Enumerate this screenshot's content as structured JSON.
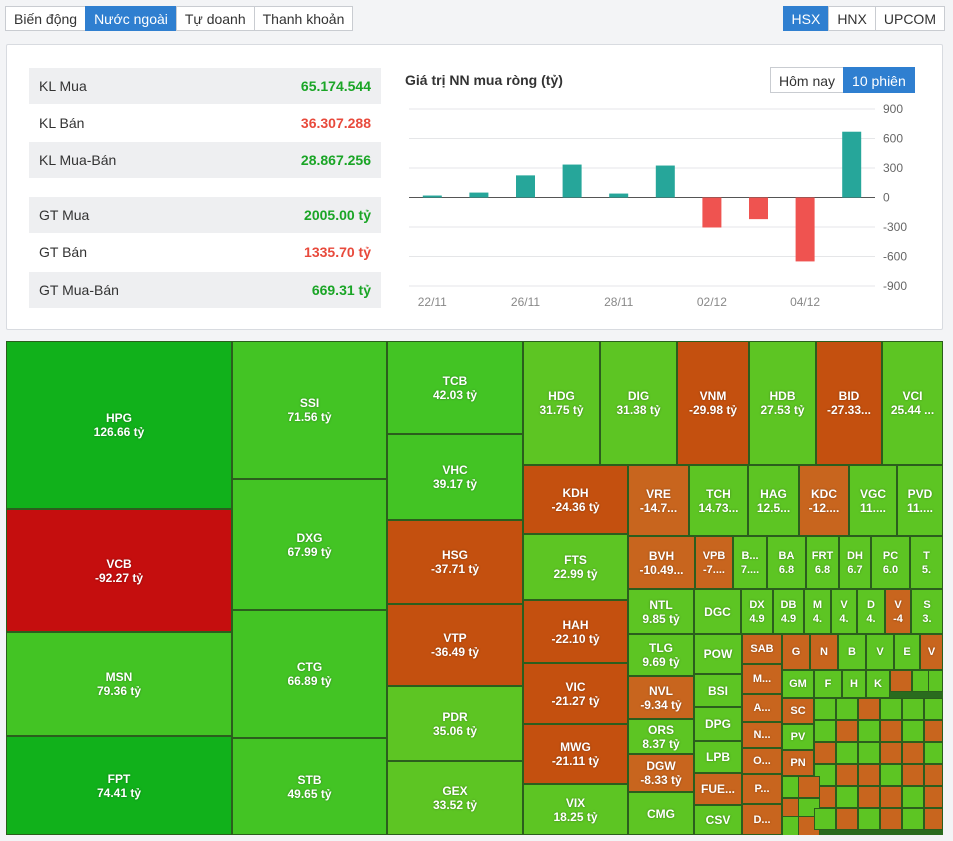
{
  "tabs": [
    {
      "label": "Biến động",
      "active": false
    },
    {
      "label": "Nước ngoài",
      "active": true
    },
    {
      "label": "Tự doanh",
      "active": false
    },
    {
      "label": "Thanh khoản",
      "active": false
    }
  ],
  "exchanges": [
    {
      "label": "HSX",
      "active": true
    },
    {
      "label": "HNX",
      "active": false
    },
    {
      "label": "UPCOM",
      "active": false
    }
  ],
  "stats": [
    {
      "label": "KL Mua",
      "value": "65.174.544",
      "tone": "up"
    },
    {
      "label": "KL Bán",
      "value": "36.307.288",
      "tone": "down"
    },
    {
      "label": "KL Mua-Bán",
      "value": "28.867.256",
      "tone": "up"
    },
    {
      "label": "GT Mua",
      "value": "2005.00 tỷ",
      "tone": "up"
    },
    {
      "label": "GT Bán",
      "value": "1335.70 tỷ",
      "tone": "down"
    },
    {
      "label": "GT Mua-Bán",
      "value": "669.31 tỷ",
      "tone": "up"
    }
  ],
  "chart_title": "Giá trị NN mua ròng (tỷ)",
  "range_buttons": [
    {
      "label": "Hôm nay",
      "active": false
    },
    {
      "label": "10 phiên",
      "active": true
    }
  ],
  "chart_data": {
    "type": "bar",
    "title": "Giá trị NN mua ròng (tỷ)",
    "x_ticks": [
      "22/11",
      "26/11",
      "28/11",
      "02/12",
      "04/12"
    ],
    "values": [
      20,
      50,
      225,
      335,
      40,
      325,
      -305,
      -220,
      -650,
      669
    ],
    "ylim": [
      -900,
      900
    ],
    "y_ticks": [
      900,
      600,
      300,
      0,
      -300,
      -600,
      -900
    ],
    "grid": true,
    "colors": {
      "positive": "#26a69a",
      "negative": "#ef5350"
    }
  },
  "heatmap_colors": {
    "strong_green": "#11b11b",
    "green": "#43c424",
    "light_green": "#5dc523",
    "orange": "#c8651e",
    "dark_orange": "#c4500f",
    "red": "#c50e0e",
    "border": "#2b5e1d"
  },
  "treemap": [
    {
      "symbol": "HPG",
      "value": "126.66 tỷ"
    },
    {
      "symbol": "VCB",
      "value": "-92.27 tỷ"
    },
    {
      "symbol": "MSN",
      "value": "79.36 tỷ"
    },
    {
      "symbol": "FPT",
      "value": "74.41 tỷ"
    },
    {
      "symbol": "SSI",
      "value": "71.56 tỷ"
    },
    {
      "symbol": "DXG",
      "value": "67.99 tỷ"
    },
    {
      "symbol": "CTG",
      "value": "66.89 tỷ"
    },
    {
      "symbol": "STB",
      "value": "49.65 tỷ"
    },
    {
      "symbol": "TCB",
      "value": "42.03 tỷ"
    },
    {
      "symbol": "VHC",
      "value": "39.17 tỷ"
    },
    {
      "symbol": "HSG",
      "value": "-37.71 tỷ"
    },
    {
      "symbol": "VTP",
      "value": "-36.49 tỷ"
    },
    {
      "symbol": "PDR",
      "value": "35.06 tỷ"
    },
    {
      "symbol": "GEX",
      "value": "33.52 tỷ"
    },
    {
      "symbol": "HDG",
      "value": "31.75 tỷ"
    },
    {
      "symbol": "DIG",
      "value": "31.38 tỷ"
    },
    {
      "symbol": "VNM",
      "value": "-29.98 tỷ"
    },
    {
      "symbol": "HDB",
      "value": "27.53 tỷ"
    },
    {
      "symbol": "BID",
      "value": "-27.33..."
    },
    {
      "symbol": "VCI",
      "value": "25.44 ..."
    },
    {
      "symbol": "KDH",
      "value": "-24.36 tỷ"
    },
    {
      "symbol": "FTS",
      "value": "22.99 tỷ"
    },
    {
      "symbol": "HAH",
      "value": "-22.10 tỷ"
    },
    {
      "symbol": "VIC",
      "value": "-21.27 tỷ"
    },
    {
      "symbol": "MWG",
      "value": "-21.11 tỷ"
    },
    {
      "symbol": "VIX",
      "value": "18.25 tỷ"
    },
    {
      "symbol": "VRE",
      "value": "-14.7..."
    },
    {
      "symbol": "TCH",
      "value": "14.73..."
    },
    {
      "symbol": "HAG",
      "value": "12.5..."
    },
    {
      "symbol": "KDC",
      "value": "-12...."
    },
    {
      "symbol": "VGC",
      "value": "11...."
    },
    {
      "symbol": "PVD",
      "value": "11...."
    },
    {
      "symbol": "BVH",
      "value": "-10.49..."
    },
    {
      "symbol": "VPB",
      "value": "-7...."
    },
    {
      "symbol": "B...",
      "value": "7...."
    },
    {
      "symbol": "BA",
      "value": "6.8"
    },
    {
      "symbol": "FRT",
      "value": "6.8"
    },
    {
      "symbol": "DH",
      "value": "6.7"
    },
    {
      "symbol": "PC",
      "value": "6.0"
    },
    {
      "symbol": "T",
      "value": "5."
    },
    {
      "symbol": "NTL",
      "value": "9.85 tỷ"
    },
    {
      "symbol": "DGC",
      "value": ""
    },
    {
      "symbol": "DX",
      "value": "4.9"
    },
    {
      "symbol": "DB",
      "value": "4.9"
    },
    {
      "symbol": "M",
      "value": "4."
    },
    {
      "symbol": "V",
      "value": "4."
    },
    {
      "symbol": "D",
      "value": "4."
    },
    {
      "symbol": "V",
      "value": "-4"
    },
    {
      "symbol": "S",
      "value": "3."
    },
    {
      "symbol": "TLG",
      "value": "9.69 tỷ"
    },
    {
      "symbol": "POW",
      "value": ""
    },
    {
      "symbol": "SAB",
      "value": ""
    },
    {
      "symbol": "G",
      "value": ""
    },
    {
      "symbol": "N",
      "value": ""
    },
    {
      "symbol": "B",
      "value": ""
    },
    {
      "symbol": "V",
      "value": ""
    },
    {
      "symbol": "E",
      "value": ""
    },
    {
      "symbol": "V",
      "value": ""
    },
    {
      "symbol": "NVL",
      "value": "-9.34 tỷ"
    },
    {
      "symbol": "BSI",
      "value": ""
    },
    {
      "symbol": "M...",
      "value": ""
    },
    {
      "symbol": "GM",
      "value": ""
    },
    {
      "symbol": "F",
      "value": ""
    },
    {
      "symbol": "H",
      "value": ""
    },
    {
      "symbol": "K",
      "value": ""
    },
    {
      "symbol": "DPG",
      "value": ""
    },
    {
      "symbol": "A...",
      "value": ""
    },
    {
      "symbol": "SC",
      "value": ""
    },
    {
      "symbol": "ORS",
      "value": "8.37 tỷ"
    },
    {
      "symbol": "LPB",
      "value": ""
    },
    {
      "symbol": "N...",
      "value": ""
    },
    {
      "symbol": "PV",
      "value": ""
    },
    {
      "symbol": "DGW",
      "value": "-8.33 tỷ"
    },
    {
      "symbol": "FUE...",
      "value": ""
    },
    {
      "symbol": "O...",
      "value": ""
    },
    {
      "symbol": "PN",
      "value": ""
    },
    {
      "symbol": "CMG",
      "value": ""
    },
    {
      "symbol": "CSV",
      "value": ""
    },
    {
      "symbol": "P...",
      "value": ""
    },
    {
      "symbol": "D...",
      "value": ""
    }
  ]
}
